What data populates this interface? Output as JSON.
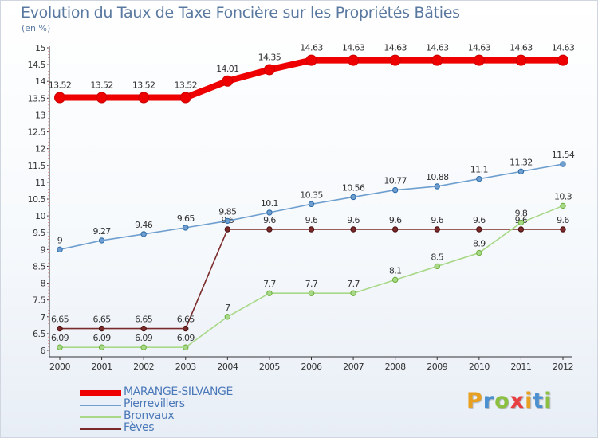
{
  "header": {
    "title": "Evolution du Taux de Taxe Foncière sur les Propriétés Bâties",
    "unit": "(en %)"
  },
  "brand": {
    "letters": [
      "P",
      "r",
      "o",
      "x",
      "i",
      "t",
      "i"
    ],
    "colors": [
      "#e8a020",
      "#4a90d0",
      "#8cc040",
      "#e84040",
      "#e8a020",
      "#4a90d0",
      "#8cc040"
    ]
  },
  "chart_data": {
    "type": "line",
    "title": "Evolution du Taux de Taxe Foncière sur les Propriétés Bâties",
    "ylabel": "(en %)",
    "xlabel": "",
    "categories": [
      "2000",
      "2001",
      "2002",
      "2003",
      "2004",
      "2005",
      "2006",
      "2007",
      "2008",
      "2009",
      "2010",
      "2011",
      "2012"
    ],
    "ylim": [
      6,
      15
    ],
    "y_ticks": [
      "6",
      "6.5",
      "7",
      "7.5",
      "8",
      "8.5",
      "9",
      "9.5",
      "10",
      "10.5",
      "11",
      "11.5",
      "12",
      "12.5",
      "13",
      "13.5",
      "14",
      "14.5",
      "15"
    ],
    "grid": false,
    "legend_position": "bottom-left",
    "series": [
      {
        "name": "MARANGE-SILVANGE",
        "color": "#ee0000",
        "emphasis": "thick",
        "values": [
          13.52,
          13.52,
          13.52,
          13.52,
          14.01,
          14.35,
          14.63,
          14.63,
          14.63,
          14.63,
          14.63,
          14.63,
          14.63
        ],
        "labels": [
          "13.52",
          "13.52",
          "13.52",
          "13.52",
          "14.01",
          "14.35",
          "14.63",
          "14.63",
          "14.63",
          "14.63",
          "14.63",
          "14.63",
          "14.63"
        ]
      },
      {
        "name": "Pierrevillers",
        "color": "#6f9fcf",
        "emphasis": "thin",
        "values": [
          9,
          9.27,
          9.46,
          9.65,
          9.85,
          10.1,
          10.35,
          10.56,
          10.77,
          10.88,
          11.1,
          11.32,
          11.54
        ],
        "labels": [
          "9",
          "9.27",
          "9.46",
          "9.65",
          "9.85",
          "10.1",
          "10.35",
          "10.56",
          "10.77",
          "10.88",
          "11.1",
          "11.32",
          "11.54"
        ]
      },
      {
        "name": "Bronvaux",
        "color": "#a8d888",
        "emphasis": "thin",
        "values": [
          6.09,
          6.09,
          6.09,
          6.09,
          7,
          7.7,
          7.7,
          7.7,
          8.1,
          8.5,
          8.9,
          9.8,
          10.3
        ],
        "labels": [
          "6.09",
          "6.09",
          "6.09",
          "6.09",
          "7",
          "7.7",
          "7.7",
          "7.7",
          "8.1",
          "8.5",
          "8.9",
          "9.8",
          "10.3"
        ]
      },
      {
        "name": "Fèves",
        "color": "#7a2a2a",
        "emphasis": "thin",
        "values": [
          6.65,
          6.65,
          6.65,
          6.65,
          9.6,
          9.6,
          9.6,
          9.6,
          9.6,
          9.6,
          9.6,
          9.6,
          9.6
        ],
        "labels": [
          "6.65",
          "6.65",
          "6.65",
          "6.65",
          "9.6",
          "9.6",
          "9.6",
          "9.6",
          "9.6",
          "9.6",
          "9.6",
          "9.6",
          "9.6"
        ]
      }
    ]
  }
}
